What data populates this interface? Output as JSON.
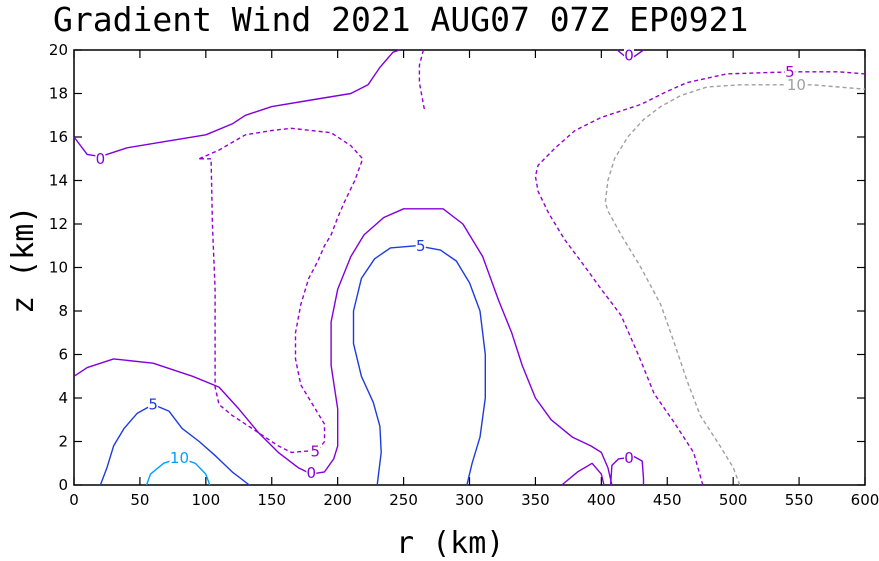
{
  "chart_data": {
    "type": "contour",
    "title": "Gradient Wind 2021 AUG07 07Z   EP0921",
    "xlabel": "r (km)",
    "ylabel": "z (km)",
    "xlim": [
      0,
      600
    ],
    "ylim": [
      0,
      20
    ],
    "x_ticks": [
      0,
      50,
      100,
      150,
      200,
      250,
      300,
      350,
      400,
      450,
      500,
      550,
      600
    ],
    "y_ticks": [
      0,
      2,
      4,
      6,
      8,
      10,
      12,
      14,
      16,
      18,
      20
    ],
    "colors": {
      "neg10": "#a0a0a0",
      "neg5": "#9600d2",
      "zero": "#8200dc",
      "pos5": "#1e3cdc",
      "pos10": "#00a0ff"
    },
    "contours": [
      {
        "id": "c-zero-top-left",
        "level": 0,
        "style": "solid",
        "color": "zero",
        "label": "0",
        "label_at": [
          20,
          15.0
        ],
        "points": [
          [
            0,
            16
          ],
          [
            10,
            15.2
          ],
          [
            20,
            15.1
          ],
          [
            40,
            15.5
          ],
          [
            70,
            15.8
          ],
          [
            100,
            16.1
          ],
          [
            120,
            16.6
          ],
          [
            130,
            17.0
          ],
          [
            150,
            17.4
          ],
          [
            180,
            17.7
          ],
          [
            210,
            18.0
          ],
          [
            223,
            18.4
          ],
          [
            232,
            19.2
          ],
          [
            242,
            19.9
          ],
          [
            247,
            20
          ]
        ]
      },
      {
        "id": "c-zero-top-right",
        "level": 0,
        "style": "solid",
        "color": "zero",
        "label": "0",
        "label_at": [
          421,
          19.75
        ],
        "points": [
          [
            412,
            20
          ],
          [
            418,
            19.7
          ],
          [
            425,
            19.7
          ],
          [
            432,
            20
          ]
        ]
      },
      {
        "id": "c-zero-main",
        "level": 0,
        "style": "solid",
        "color": "zero",
        "label": "0",
        "label_at": [
          180,
          0.55
        ],
        "points": [
          [
            0,
            5
          ],
          [
            10,
            5.4
          ],
          [
            30,
            5.8
          ],
          [
            60,
            5.6
          ],
          [
            90,
            5.0
          ],
          [
            110,
            4.5
          ],
          [
            125,
            3.5
          ],
          [
            140,
            2.4
          ],
          [
            155,
            1.5
          ],
          [
            170,
            0.8
          ],
          [
            180,
            0.5
          ],
          [
            190,
            0.6
          ],
          [
            197,
            1.2
          ],
          [
            200,
            1.8
          ],
          [
            200,
            3.5
          ],
          [
            195,
            5.5
          ],
          [
            195,
            7.5
          ],
          [
            200,
            9.0
          ],
          [
            210,
            10.5
          ],
          [
            220,
            11.5
          ],
          [
            235,
            12.3
          ],
          [
            250,
            12.7
          ],
          [
            272,
            12.7
          ],
          [
            280,
            12.7
          ],
          [
            295,
            12.0
          ],
          [
            310,
            10.5
          ],
          [
            322,
            8.5
          ],
          [
            332,
            7.0
          ],
          [
            340,
            5.5
          ],
          [
            350,
            4.0
          ],
          [
            362,
            3.0
          ],
          [
            378,
            2.2
          ],
          [
            392,
            1.8
          ],
          [
            400,
            1.5
          ],
          [
            405,
            0.8
          ],
          [
            408,
            0
          ]
        ]
      },
      {
        "id": "c-zero-bottom-left-loop",
        "level": 0,
        "style": "solid",
        "color": "zero",
        "label": "",
        "label_at": null,
        "points": [
          [
            370,
            0
          ],
          [
            382,
            0.6
          ],
          [
            393,
            1.0
          ],
          [
            400,
            0.5
          ],
          [
            402,
            0
          ]
        ]
      },
      {
        "id": "c-zero-bottom-right-loop",
        "level": 0,
        "style": "solid",
        "color": "zero",
        "label": "0",
        "label_at": [
          421,
          1.25
        ],
        "points": [
          [
            407,
            0
          ],
          [
            408,
            0.9
          ],
          [
            413,
            1.2
          ],
          [
            425,
            1.3
          ],
          [
            431,
            1.1
          ],
          [
            432,
            0.3
          ],
          [
            432,
            0
          ]
        ]
      },
      {
        "id": "c-neg5-left",
        "level": -5,
        "style": "dashed",
        "color": "neg5",
        "label": "5",
        "label_at": [
          183,
          1.55
        ],
        "points": [
          [
            265,
            20
          ],
          [
            262,
            19.3
          ],
          [
            262,
            18.5
          ],
          [
            265,
            17.5
          ],
          [
            266,
            17.2
          ]
        ]
      },
      {
        "id": "c-neg5-main",
        "level": -5,
        "style": "dashed",
        "color": "neg5",
        "label": "5",
        "label_at": [
          183,
          1.55
        ],
        "points": [
          [
            95,
            15.0
          ],
          [
            110,
            15.4
          ],
          [
            130,
            16.1
          ],
          [
            150,
            16.3
          ],
          [
            165,
            16.4
          ],
          [
            195,
            16.2
          ],
          [
            210,
            15.6
          ],
          [
            219,
            15.0
          ],
          [
            213,
            14.0
          ],
          [
            205,
            13.0
          ],
          [
            200,
            12.3
          ],
          [
            195,
            11.5
          ],
          [
            190,
            11.0
          ],
          [
            185,
            10.3
          ],
          [
            178,
            9.5
          ],
          [
            172,
            8.3
          ],
          [
            168,
            7.0
          ],
          [
            168,
            5.8
          ],
          [
            172,
            4.6
          ],
          [
            183,
            3.5
          ],
          [
            190,
            2.8
          ],
          [
            190,
            2.0
          ],
          [
            185,
            1.6
          ],
          [
            165,
            1.5
          ],
          [
            155,
            1.8
          ],
          [
            135,
            2.6
          ],
          [
            120,
            3.2
          ],
          [
            110,
            3.7
          ],
          [
            107,
            4.5
          ],
          [
            107,
            9.0
          ],
          [
            105,
            12.0
          ],
          [
            104,
            15.0
          ],
          [
            95,
            15.0
          ]
        ]
      },
      {
        "id": "c-neg5-right",
        "level": -5,
        "style": "dashed",
        "color": "neg5",
        "label": "5",
        "label_at": [
          543,
          19.0
        ],
        "points": [
          [
            477,
            0
          ],
          [
            470,
            1.5
          ],
          [
            455,
            2.9
          ],
          [
            440,
            4.2
          ],
          [
            428,
            6.0
          ],
          [
            415,
            7.8
          ],
          [
            400,
            9.0
          ],
          [
            388,
            10.0
          ],
          [
            372,
            11.3
          ],
          [
            360,
            12.5
          ],
          [
            352,
            13.5
          ],
          [
            350,
            14.2
          ],
          [
            352,
            14.7
          ],
          [
            365,
            15.5
          ],
          [
            380,
            16.3
          ],
          [
            400,
            16.9
          ],
          [
            430,
            17.5
          ],
          [
            450,
            18.1
          ],
          [
            465,
            18.5
          ],
          [
            495,
            18.9
          ],
          [
            545,
            19.0
          ],
          [
            580,
            19.0
          ],
          [
            600,
            18.9
          ]
        ]
      },
      {
        "id": "c-neg10-right",
        "level": -10,
        "style": "dashed",
        "color": "neg10",
        "label": "10",
        "label_at": [
          548,
          18.4
        ],
        "points": [
          [
            505,
            0
          ],
          [
            500,
            0.8
          ],
          [
            490,
            1.8
          ],
          [
            475,
            3.2
          ],
          [
            465,
            4.8
          ],
          [
            455,
            6.6
          ],
          [
            445,
            8.3
          ],
          [
            430,
            10.0
          ],
          [
            415,
            11.5
          ],
          [
            405,
            12.6
          ],
          [
            403,
            13.0
          ],
          [
            405,
            14.0
          ],
          [
            410,
            15.0
          ],
          [
            420,
            16.0
          ],
          [
            432,
            16.8
          ],
          [
            445,
            17.4
          ],
          [
            460,
            17.9
          ],
          [
            480,
            18.3
          ],
          [
            505,
            18.4
          ],
          [
            545,
            18.4
          ],
          [
            560,
            18.4
          ],
          [
            580,
            18.3
          ],
          [
            600,
            18.2
          ]
        ]
      },
      {
        "id": "c-pos5-inner",
        "level": 5,
        "style": "solid",
        "color": "pos5",
        "label": "5",
        "label_at": [
          263,
          11.0
        ],
        "points": [
          [
            230,
            0
          ],
          [
            233,
            1.5
          ],
          [
            232,
            2.7
          ],
          [
            227,
            3.8
          ],
          [
            218,
            5.0
          ],
          [
            212,
            6.5
          ],
          [
            212,
            8.0
          ],
          [
            218,
            9.5
          ],
          [
            228,
            10.4
          ],
          [
            240,
            10.9
          ],
          [
            260,
            11.0
          ],
          [
            278,
            10.8
          ],
          [
            290,
            10.3
          ],
          [
            300,
            9.3
          ],
          [
            308,
            8.0
          ],
          [
            312,
            6.0
          ],
          [
            312,
            4.0
          ],
          [
            308,
            2.2
          ],
          [
            302,
            1.0
          ],
          [
            298,
            0
          ]
        ]
      },
      {
        "id": "c-pos5-outer",
        "level": 5,
        "style": "solid",
        "color": "pos5",
        "label": "5",
        "label_at": [
          60,
          3.7
        ],
        "points": [
          [
            20,
            0
          ],
          [
            25,
            0.8
          ],
          [
            30,
            1.8
          ],
          [
            38,
            2.6
          ],
          [
            48,
            3.3
          ],
          [
            60,
            3.7
          ],
          [
            72,
            3.4
          ],
          [
            82,
            2.6
          ],
          [
            95,
            2.0
          ],
          [
            108,
            1.3
          ],
          [
            120,
            0.6
          ],
          [
            133,
            0
          ]
        ]
      },
      {
        "id": "c-pos10",
        "level": 10,
        "style": "solid",
        "color": "pos10",
        "label": "10",
        "label_at": [
          80,
          1.25
        ],
        "points": [
          [
            55,
            0
          ],
          [
            58,
            0.5
          ],
          [
            68,
            1.0
          ],
          [
            80,
            1.25
          ],
          [
            92,
            1.0
          ],
          [
            100,
            0.5
          ],
          [
            103,
            0
          ]
        ]
      }
    ]
  }
}
